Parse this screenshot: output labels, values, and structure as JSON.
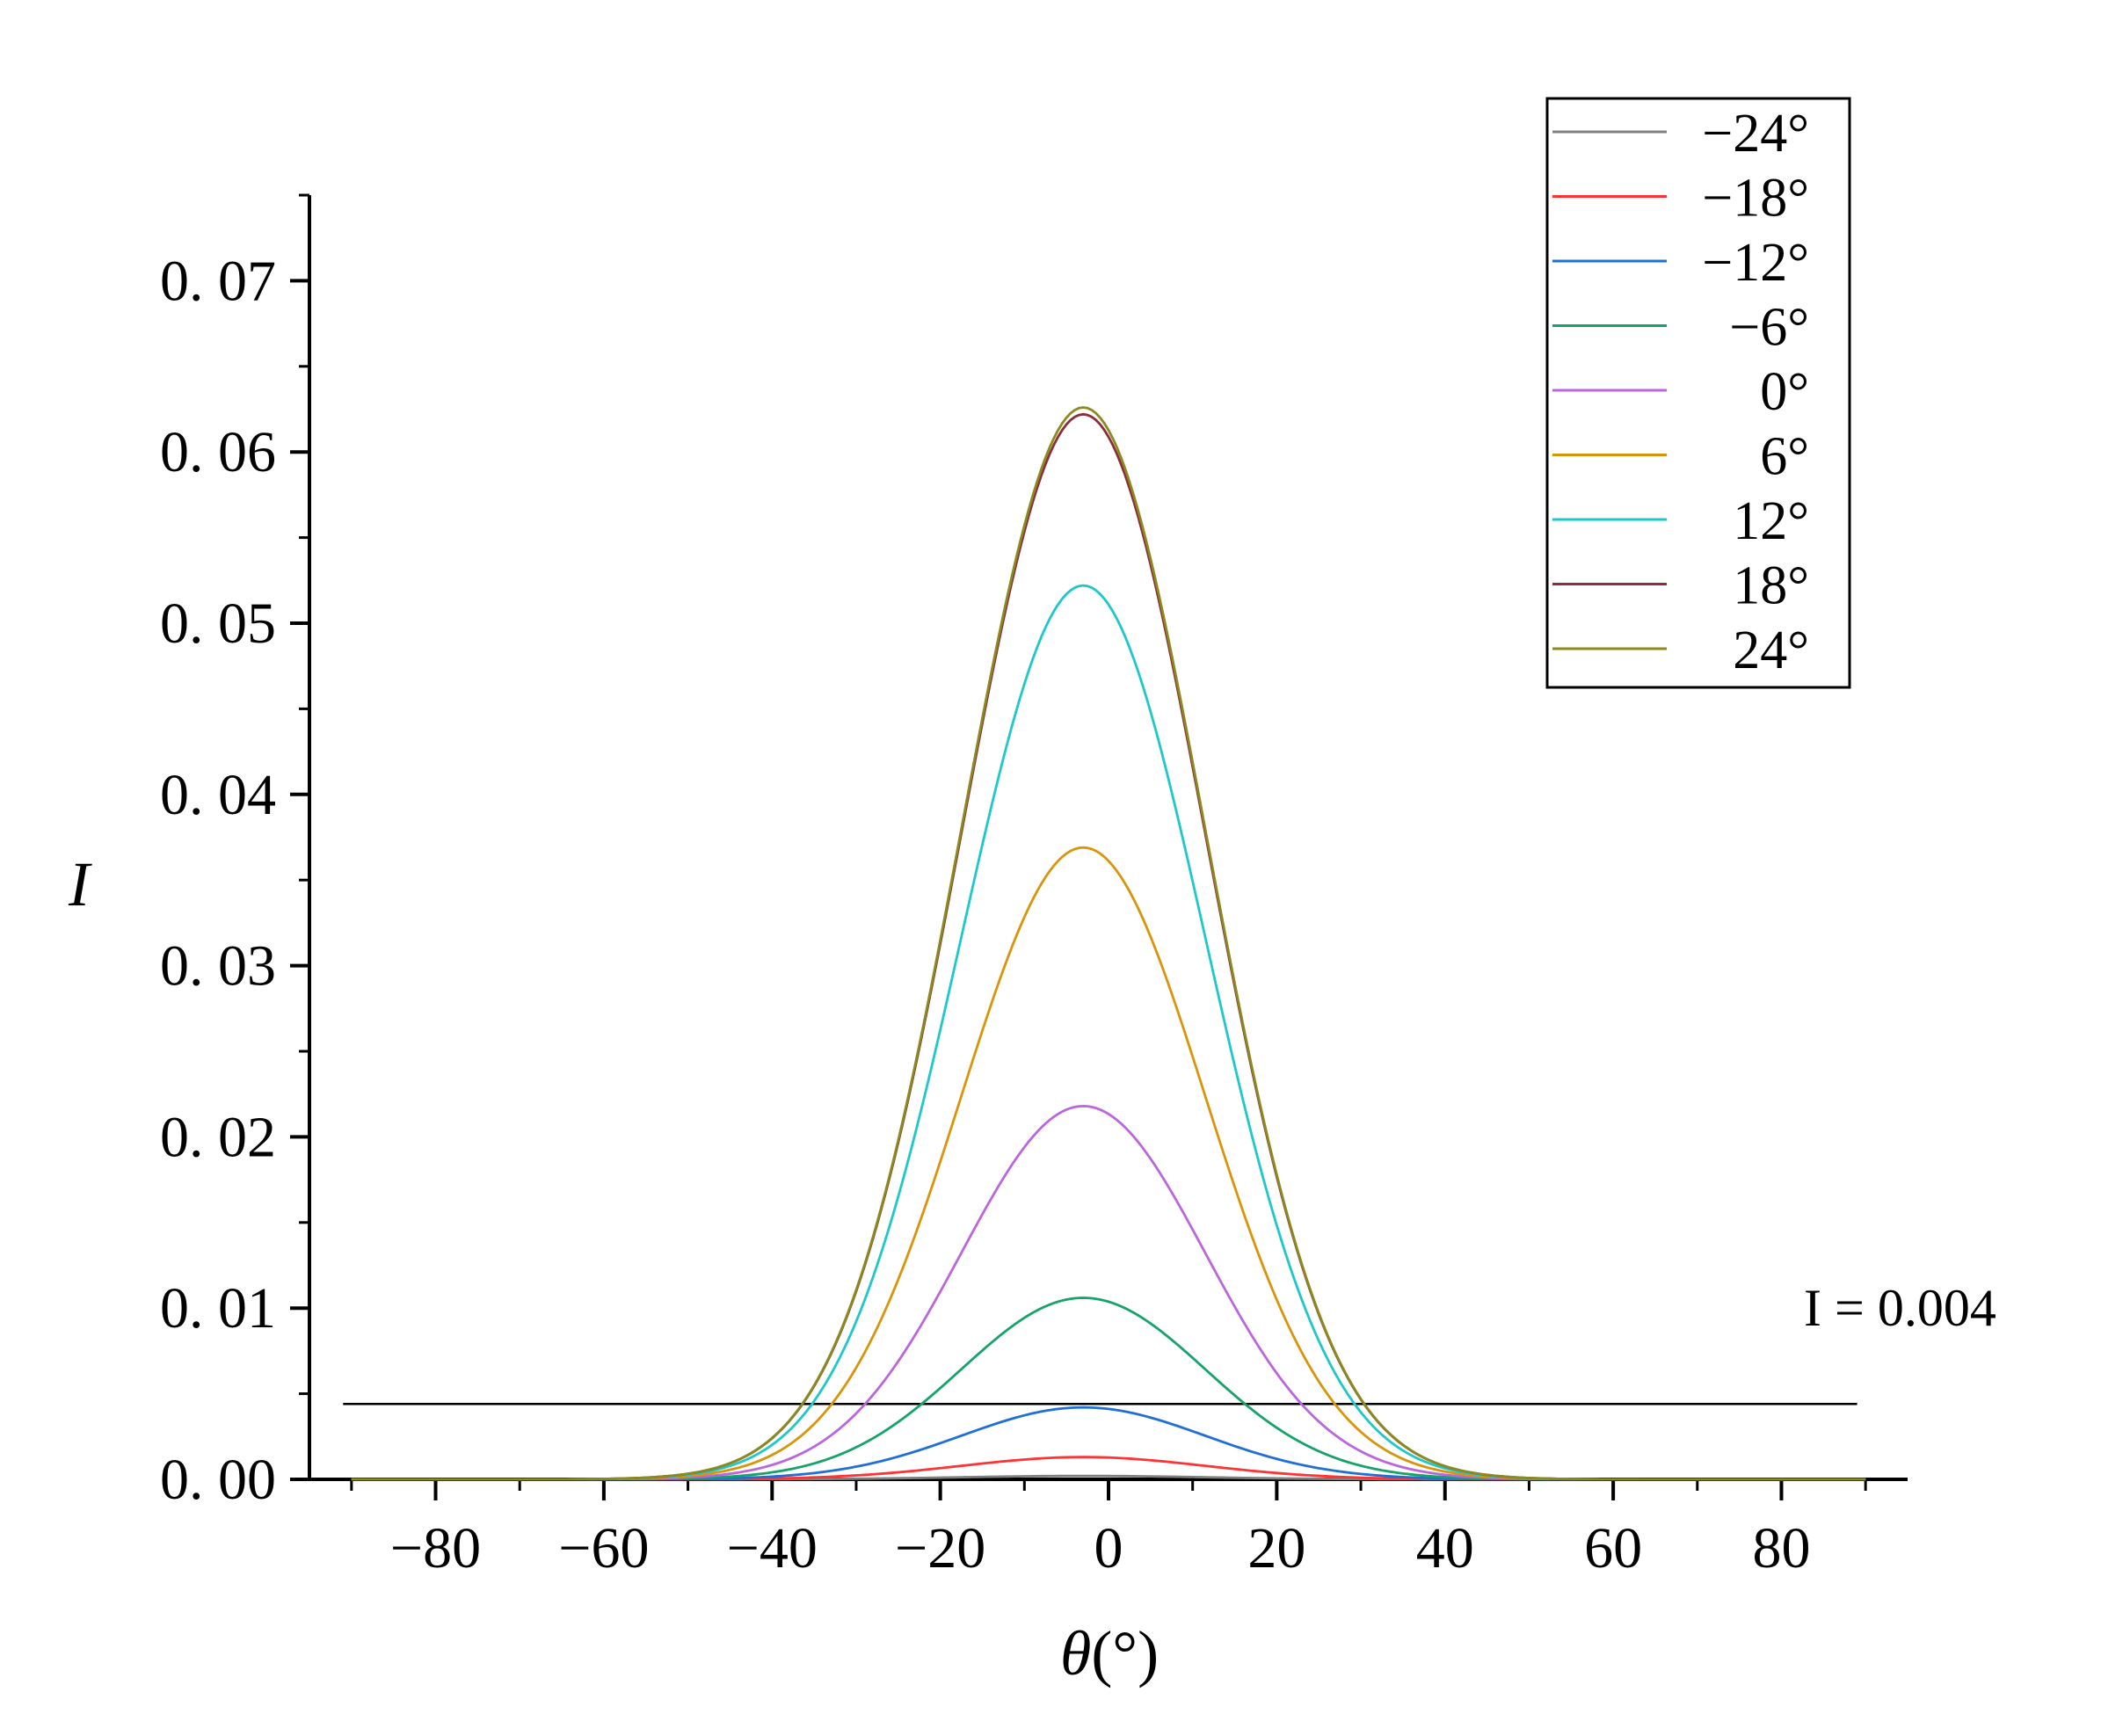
{
  "chart_data": {
    "type": "line",
    "xlabel_symbol": "θ",
    "xlabel_unit": "(°)",
    "ylabel": "I",
    "xlim": [
      -95,
      95
    ],
    "ylim": [
      0,
      0.075
    ],
    "xticks": [
      -80,
      -60,
      -40,
      -20,
      0,
      20,
      40,
      60,
      80
    ],
    "xtick_labels": [
      "−80",
      "−60",
      "−40",
      "−20",
      "0",
      "20",
      "40",
      "60",
      "80"
    ],
    "yticks": [
      0,
      0.01,
      0.02,
      0.03,
      0.04,
      0.05,
      0.06,
      0.07
    ],
    "ytick_labels": [
      "0. 00",
      "0. 01",
      "0. 02",
      "0. 03",
      "0. 04",
      "0. 05",
      "0. 06",
      "0. 07"
    ],
    "legend_position": "top-right",
    "grid": false,
    "x_range": [
      -90,
      90
    ],
    "peak_center": -3,
    "series": [
      {
        "name": "−24°",
        "color": "#808080",
        "peak": 0.0002
      },
      {
        "name": "−18°",
        "color": "#ff3333",
        "peak": 0.0013
      },
      {
        "name": "−12°",
        "color": "#1f6fd6",
        "peak": 0.0042
      },
      {
        "name": "−6°",
        "color": "#16a36a",
        "peak": 0.0106
      },
      {
        "name": "0°",
        "color": "#bb66dd",
        "peak": 0.0218
      },
      {
        "name": "6°",
        "color": "#d9940a",
        "peak": 0.0369
      },
      {
        "name": "12°",
        "color": "#1ec8c8",
        "peak": 0.0522
      },
      {
        "name": "18°",
        "color": "#8b2d3a",
        "peak": 0.0622
      },
      {
        "name": "24°",
        "color": "#8a8a1e",
        "peak": 0.0626
      }
    ],
    "threshold": {
      "value": 0.0044,
      "label": "I = 0.004",
      "x_range": [
        -91,
        89
      ]
    }
  }
}
